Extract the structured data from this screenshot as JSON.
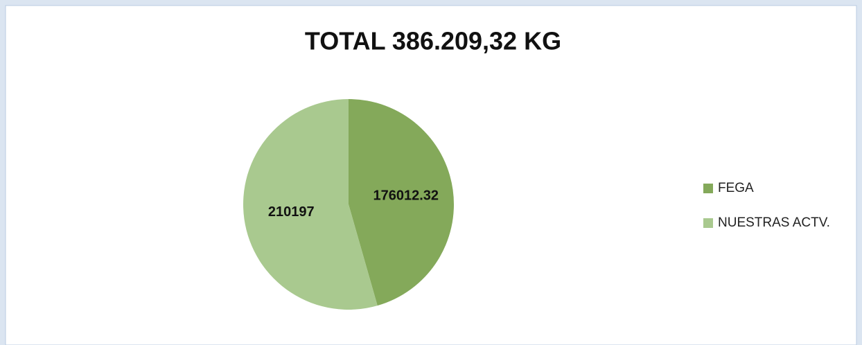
{
  "chart_data": {
    "type": "pie",
    "title": "TOTAL 386.209,32 KG",
    "categories": [
      "FEGA",
      "NUESTRAS ACTV."
    ],
    "values": [
      176012.32,
      210197
    ],
    "colors": [
      "#84a95a",
      "#a9c98f"
    ],
    "legend": "right"
  }
}
